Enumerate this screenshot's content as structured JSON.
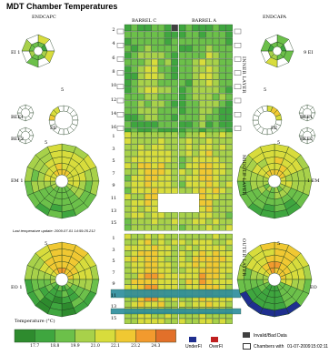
{
  "title": "MDT Chamber Temperatures",
  "inner": {
    "endcap_c": "ENDCAPC",
    "endcap_a": "ENDCAPA",
    "barrel_c": "BARREL C",
    "barrel_a": "BARREL A",
    "layer": "INNER LAYER",
    "rows": [
      "2",
      "4",
      "6",
      "8",
      "10",
      "12",
      "14",
      "16"
    ],
    "ei_left": "EI 1",
    "ei_right": "9 EI",
    "bee1_left": "BEE1",
    "bee2_left": "BEE2",
    "bee1_right": "BEE1",
    "bee2_right": "BEE2",
    "ee_left": "EE",
    "ee_right": "EE",
    "ee_top_left": "5",
    "ee_top_right": "5"
  },
  "middle": {
    "layer": "MIDDLE LAYER",
    "rows": [
      "1",
      "3",
      "5",
      "7",
      "9",
      "11",
      "13",
      "15"
    ],
    "em_left": "EM  1",
    "em_right": "1  EM",
    "top_left": "5",
    "top_right": "5"
  },
  "update_text": "Last temperature update: 2009-07-01 14:59:25.212",
  "outer": {
    "layer": "OUTER LAYER",
    "rows": [
      "1",
      "3",
      "5",
      "7",
      "9",
      "11",
      "13",
      "15"
    ],
    "eo_left": "EO  1",
    "eo_right": "EO",
    "top_left": "5",
    "top_right": "5"
  },
  "legend": {
    "temperature_label": "Temperature (°C)",
    "scale_values": [
      "17.7",
      "18.8",
      "19.9",
      "21.0",
      "22.1",
      "23.2",
      "24.3"
    ],
    "underfl": "UnderFl",
    "overfl": "OverFl",
    "invalid": "Invalid/Bad Data",
    "chambers_with": "Chambers with",
    "chambers_date": "01-07-2009",
    "chambers_time": "15:02:11",
    "colors": {
      "underfl": "#1f2f8f",
      "overfl": "#c02020",
      "invalid": "#404040"
    }
  }
}
